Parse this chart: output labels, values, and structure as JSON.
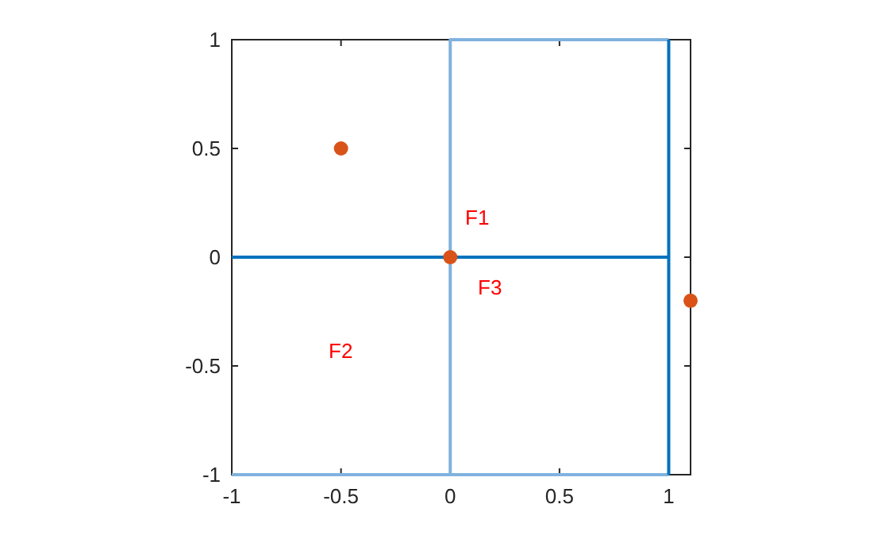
{
  "chart_data": {
    "type": "scatter",
    "xlim": [
      -1,
      1.1
    ],
    "ylim": [
      -1,
      1
    ],
    "xticks": [
      -1,
      -0.5,
      0,
      0.5,
      1
    ],
    "yticks": [
      -1,
      -0.5,
      0,
      0.5,
      1
    ],
    "marker": "circle",
    "series": [
      {
        "type": "line",
        "color": "#7fb2de",
        "x": [
          0,
          0,
          1
        ],
        "values": [
          -1,
          1,
          1
        ],
        "marker": "none",
        "line_style": "solid"
      },
      {
        "type": "line",
        "color": "#7fb2de",
        "x": [
          -1,
          1
        ],
        "values": [
          -1,
          -1
        ],
        "marker": "none",
        "line_style": "solid"
      },
      {
        "type": "line",
        "color": "#0072bd",
        "x": [
          -1,
          1
        ],
        "values": [
          0,
          0
        ],
        "marker": "none",
        "line_style": "solid"
      },
      {
        "type": "line",
        "color": "#0072bd",
        "x": [
          1,
          1
        ],
        "values": [
          -1,
          1
        ],
        "marker": "none",
        "line_style": "solid"
      },
      {
        "color": "#d95319",
        "x": [
          -0.5,
          0,
          1.1
        ],
        "values": [
          0.5,
          0,
          -0.2
        ]
      }
    ],
    "annotations": [
      "F1",
      "F2",
      "F3"
    ]
  }
}
